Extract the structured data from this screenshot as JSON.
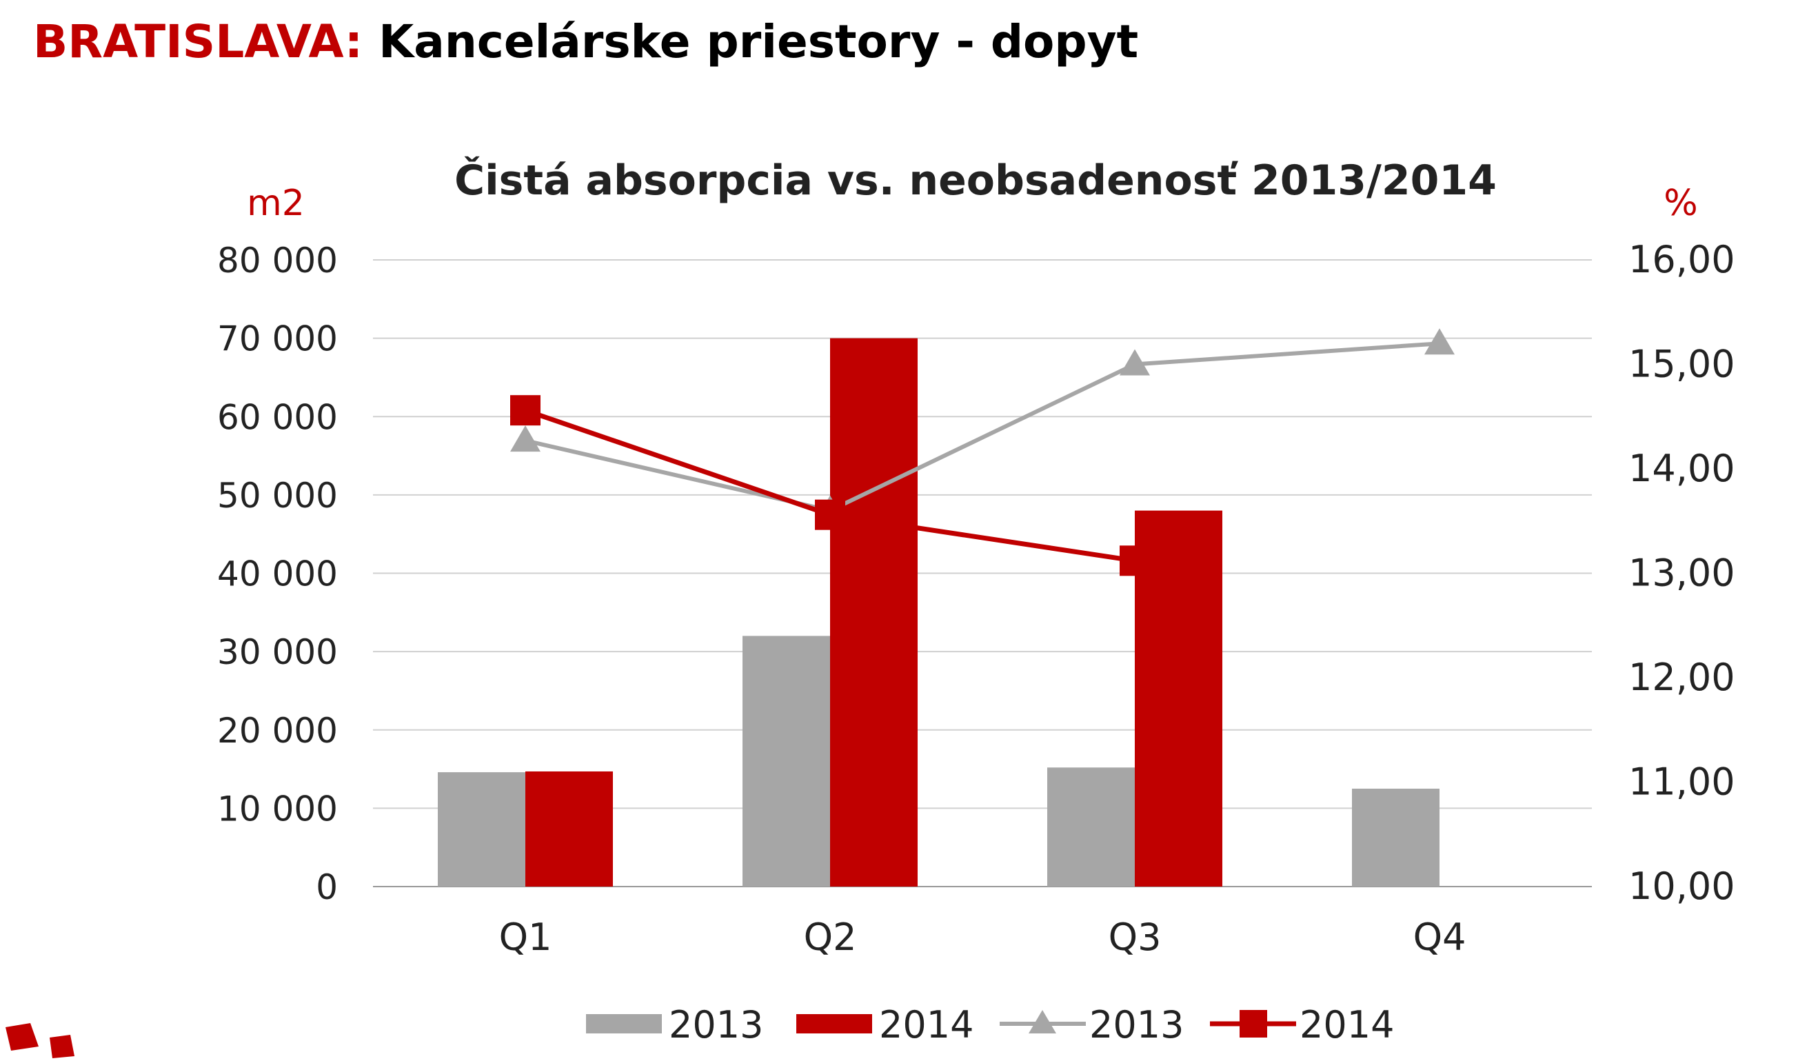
{
  "page": {
    "title_city": "BRATISLAVA:",
    "title_rest": " Kancelárske priestory - dopyt"
  },
  "colors": {
    "red": "#c00000",
    "gray": "#a6a6a6",
    "grid": "#d0d0d0"
  },
  "chart_data": {
    "type": "bar+line",
    "title": "Čistá absorpcia vs. neobsadenosť 2013/2014",
    "ylabel": "m2",
    "y2label": "%",
    "categories": [
      "Q1",
      "Q2",
      "Q3",
      "Q4"
    ],
    "ylim": [
      0,
      80000
    ],
    "yticks": [
      "0",
      "10 000",
      "20 000",
      "30 000",
      "40 000",
      "50 000",
      "60 000",
      "70 000",
      "80 000"
    ],
    "y2lim": [
      10,
      16
    ],
    "y2ticks": [
      "10,00",
      "11,00",
      "12,00",
      "13,00",
      "14,00",
      "15,00",
      "16,00"
    ],
    "grid": true,
    "legend_position": "bottom",
    "bar_series": [
      {
        "name": "2013",
        "values": [
          14600,
          32000,
          15200,
          12500
        ]
      },
      {
        "name": "2014",
        "values": [
          14700,
          70000,
          48000,
          null
        ]
      }
    ],
    "line_series": [
      {
        "name": "2013",
        "marker": "triangle",
        "values": [
          14.27,
          13.6,
          15.0,
          15.2
        ]
      },
      {
        "name": "2014",
        "marker": "square",
        "values": [
          14.56,
          13.56,
          13.12,
          null
        ]
      }
    ]
  }
}
